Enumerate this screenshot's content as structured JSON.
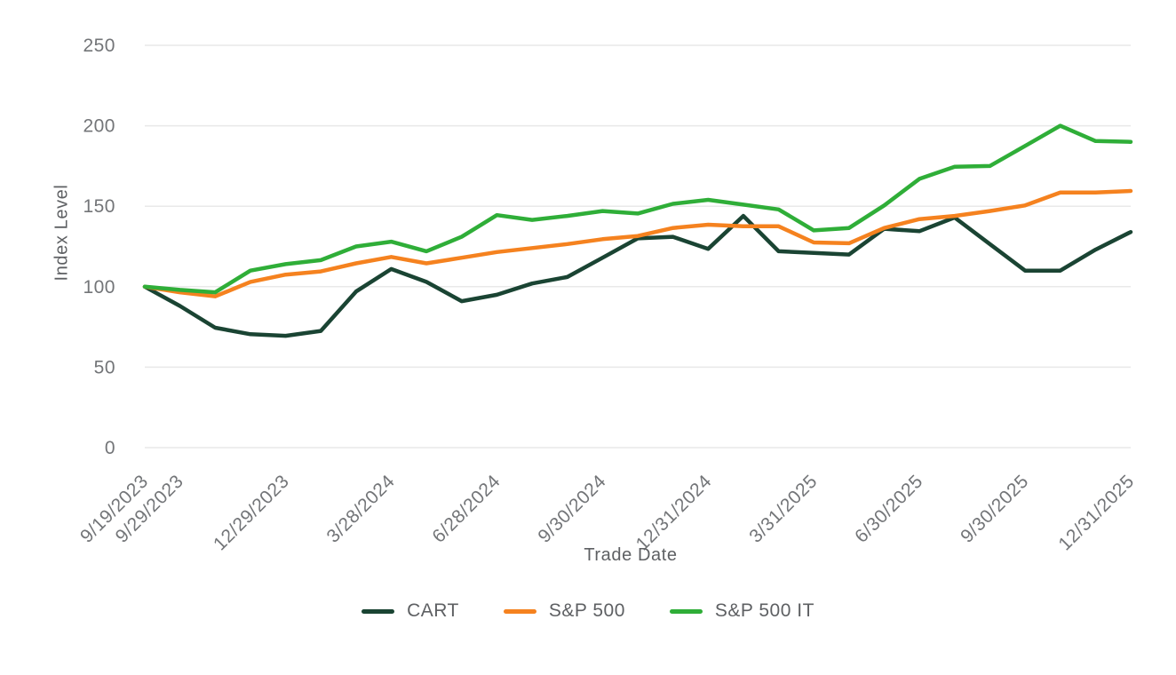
{
  "chart": {
    "y_axis_title": "Index Level",
    "x_axis_title": "Trade Date"
  },
  "chart_data": {
    "type": "line",
    "title": "",
    "xlabel": "Trade Date",
    "ylabel": "Index Level",
    "ylim": [
      0,
      250
    ],
    "y_ticks": [
      0,
      50,
      100,
      150,
      200,
      250
    ],
    "grid": true,
    "legend_position": "bottom-center",
    "colors": {
      "grid": "#E9E9E9",
      "tick_text": "#737578",
      "axis_title_text": "#5E6063"
    },
    "categories": [
      "9/19/2023",
      "9/29/2023",
      "10/31/2023",
      "11/30/2023",
      "12/29/2023",
      "1/31/2024",
      "2/29/2024",
      "3/28/2024",
      "4/30/2024",
      "5/31/2024",
      "6/28/2024",
      "7/31/2024",
      "8/30/2024",
      "9/30/2024",
      "10/31/2024",
      "11/29/2024",
      "12/31/2024",
      "1/31/2025",
      "2/28/2025",
      "3/31/2025",
      "4/30/2025",
      "5/30/2025",
      "6/30/2025",
      "7/31/2025",
      "8/29/2025",
      "9/30/2025",
      "10/31/2025",
      "11/28/2025",
      "12/31/2025"
    ],
    "x_tick_marks": [
      {
        "index": 0,
        "label": "9/19/2023"
      },
      {
        "index": 1,
        "label": "9/29/2023"
      },
      {
        "index": 4,
        "label": "12/29/2023"
      },
      {
        "index": 7,
        "label": "3/28/2024"
      },
      {
        "index": 10,
        "label": "6/28/2024"
      },
      {
        "index": 13,
        "label": "9/30/2024"
      },
      {
        "index": 16,
        "label": "12/31/2024"
      },
      {
        "index": 19,
        "label": "3/31/2025"
      },
      {
        "index": 22,
        "label": "6/30/2025"
      },
      {
        "index": 25,
        "label": "9/30/2025"
      },
      {
        "index": 28,
        "label": "12/31/2025"
      }
    ],
    "series": [
      {
        "name": "CART",
        "color": "#1A4433",
        "values": [
          100,
          88,
          74.5,
          70.5,
          69.5,
          72.5,
          97,
          111,
          103,
          91,
          95,
          102,
          106,
          118,
          130,
          131,
          123.5,
          144,
          122,
          121,
          120,
          136,
          134.5,
          143,
          126.5,
          110,
          110,
          123,
          134
        ]
      },
      {
        "name": "S&P 500",
        "color": "#F5821F",
        "values": [
          100,
          96.5,
          94,
          103,
          107.5,
          109.5,
          114.5,
          118.5,
          114.5,
          118,
          121.5,
          124,
          126.5,
          129.5,
          131.5,
          136.5,
          138.5,
          137.5,
          137.5,
          127.5,
          127,
          136.5,
          142,
          144,
          147,
          150.5,
          158.5,
          158.5,
          159.5
        ]
      },
      {
        "name": "S&P 500 IT",
        "color": "#2FAE38",
        "values": [
          100,
          98,
          96.5,
          110,
          114,
          116.5,
          125,
          128,
          122,
          131,
          144.5,
          141.5,
          144,
          147,
          145.5,
          151.5,
          154,
          151,
          148,
          135,
          136.5,
          150.5,
          167,
          174.5,
          175,
          187.5,
          200,
          190.5,
          190
        ]
      }
    ]
  }
}
